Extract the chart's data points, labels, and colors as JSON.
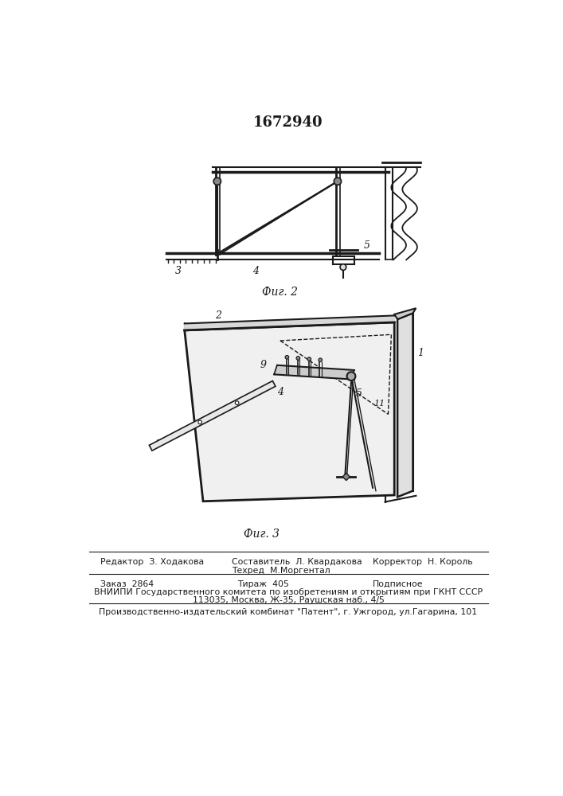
{
  "patent_number": "1672940",
  "background_color": "#ffffff",
  "fig2_caption": "Фиг. 2",
  "fig3_caption": "Фиг. 3",
  "footer": {
    "editor_label": "Редактор  З. Ходакова",
    "composer_label": "Составитель  Л. Квардакова",
    "techred_label": "Техред  М.Моргентал",
    "corrector_label": "Корректор  Н. Король",
    "order_label": "Заказ  2864",
    "tirazh_label": "Тираж  405",
    "podpisnoe_label": "Подписное",
    "vniipі_line1": "ВНИИПИ Государственного комитета по изобретениям и открытиям при ГКНТ СССР",
    "vniipі_line2": "113035, Москва, Ж-35, Раушская наб., 4/5",
    "production_line": "Производственно-издательский комбинат \"Патент\", г. Ужгород, ул.Гагарина, 101"
  }
}
